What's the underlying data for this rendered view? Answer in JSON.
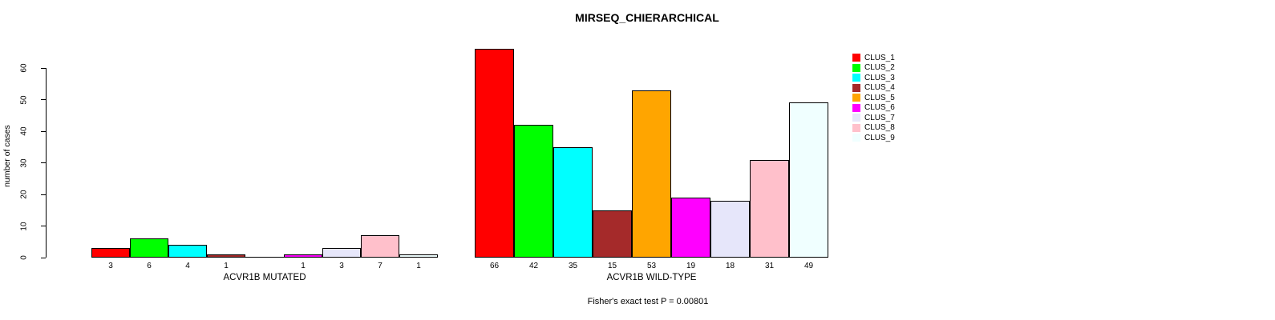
{
  "title": "MIRSEQ_CHIERARCHICAL",
  "chart_data": {
    "type": "bar",
    "title": "MIRSEQ_CHIERARCHICAL",
    "ylabel": "number of cases",
    "xlabel": "",
    "ylim": [
      0,
      66
    ],
    "y_ticks": [
      0,
      10,
      20,
      30,
      40,
      50,
      60
    ],
    "grid": false,
    "legend_position": "right",
    "categories": [
      "CLUS_1",
      "CLUS_2",
      "CLUS_3",
      "CLUS_4",
      "CLUS_5",
      "CLUS_6",
      "CLUS_7",
      "CLUS_8",
      "CLUS_9"
    ],
    "series_colors": [
      "#FF0000",
      "#00FF00",
      "#00FFFF",
      "#A52A2A",
      "#FFA500",
      "#FF00FF",
      "#E6E6FA",
      "#FFC0CB",
      "#F0FFFF"
    ],
    "groups": [
      {
        "label": "ACVR1B MUTATED",
        "values": [
          3,
          6,
          4,
          1,
          0,
          1,
          3,
          7,
          1
        ]
      },
      {
        "label": "ACVR1B WILD-TYPE",
        "values": [
          66,
          42,
          35,
          15,
          53,
          19,
          18,
          31,
          49
        ]
      }
    ],
    "annotation": "Fisher's exact test P = 0.00801"
  },
  "legend": {
    "entries": [
      {
        "label": "CLUS_1",
        "color": "#FF0000"
      },
      {
        "label": "CLUS_2",
        "color": "#00FF00"
      },
      {
        "label": "CLUS_3",
        "color": "#00FFFF"
      },
      {
        "label": "CLUS_4",
        "color": "#A52A2A"
      },
      {
        "label": "CLUS_5",
        "color": "#FFA500"
      },
      {
        "label": "CLUS_6",
        "color": "#FF00FF"
      },
      {
        "label": "CLUS_7",
        "color": "#E6E6FA"
      },
      {
        "label": "CLUS_8",
        "color": "#FFC0CB"
      },
      {
        "label": "CLUS_9",
        "color": "#F0FFFF"
      }
    ]
  },
  "colors": {
    "background": "#FFFFFF",
    "axis": "#000000",
    "text": "#000000"
  }
}
